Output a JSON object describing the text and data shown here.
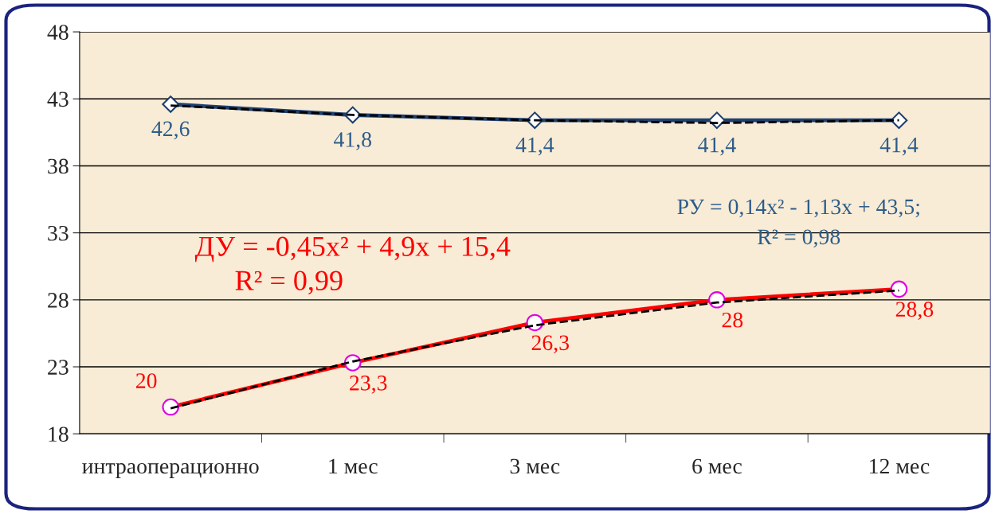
{
  "chart_data": {
    "type": "line",
    "categories": [
      "интраоперационно",
      "1 мес",
      "3 мес",
      "6 мес",
      "12 мес"
    ],
    "series": [
      {
        "color": "#1f3f6e",
        "values": [
          42.6,
          41.8,
          41.4,
          41.4,
          41.4
        ],
        "marker": "diamond",
        "value_labels": [
          "42,6",
          "41,8",
          "41,4",
          "41,4",
          "41,4"
        ]
      },
      {
        "color": "#ff0000",
        "values": [
          20,
          23.3,
          26.3,
          28,
          28.8
        ],
        "marker": "circle",
        "value_labels": [
          "20",
          "23,3",
          "26,3",
          "28",
          "28,8"
        ]
      },
      {
        "type": "line",
        "color": "#000000",
        "line_style": "dashed",
        "marker": "none",
        "x": [
          "интраоперационно",
          "1 мес",
          "3 мес",
          "6 мес",
          "12 мес"
        ],
        "values": [
          42.5,
          41.8,
          41.4,
          41.2,
          41.4
        ]
      },
      {
        "type": "line",
        "color": "#000000",
        "line_style": "dashed",
        "marker": "none",
        "x": [
          "интраоперационно",
          "1 мес",
          "3 мес",
          "6 мес",
          "12 мес"
        ],
        "values": [
          19.9,
          23.4,
          26.1,
          27.8,
          28.7
        ]
      }
    ],
    "ylim": [
      18,
      48
    ],
    "yticks": [
      18,
      23,
      28,
      33,
      38,
      43,
      48
    ],
    "grid": "y",
    "legend": false,
    "annotations": [
      "ДУ = -0,45x² + 4,9x + 15,4",
      "R² = 0,99",
      "РУ = 0,14x² - 1,13x + 43,5;",
      "R² = 0,98"
    ]
  }
}
